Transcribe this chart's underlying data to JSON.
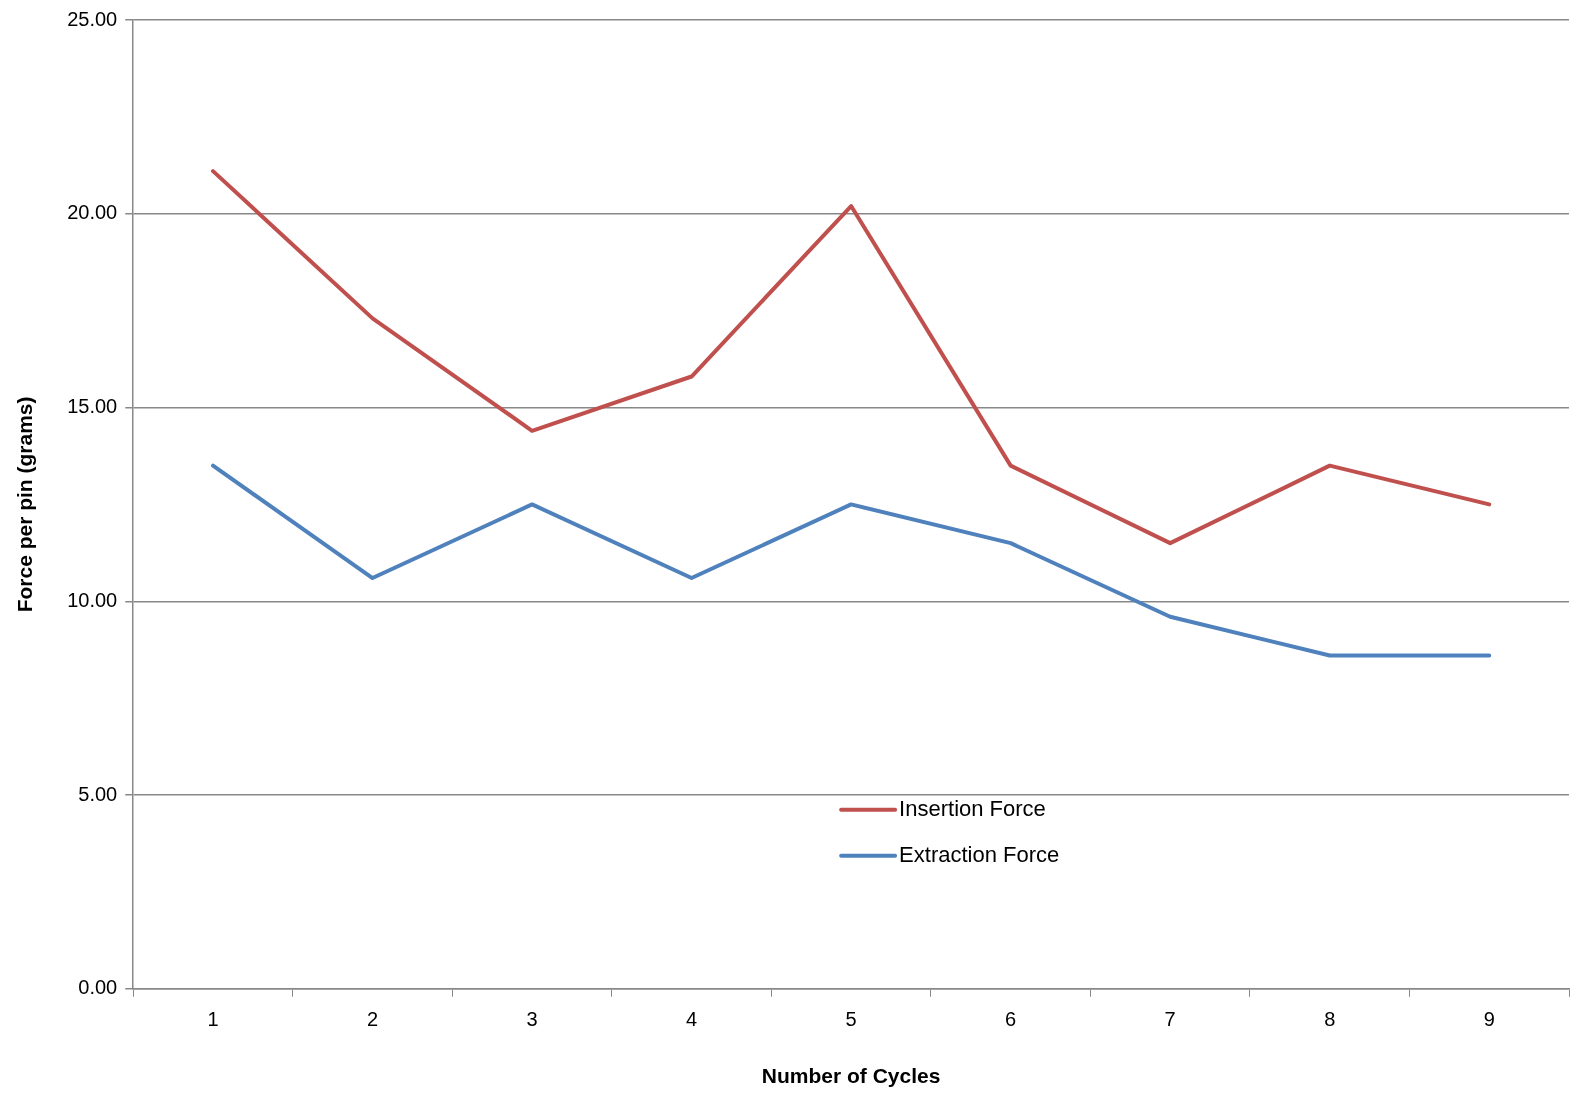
{
  "chart_data": {
    "type": "line",
    "xlabel": "Number of Cycles",
    "ylabel": "Force per pin (grams)",
    "categories": [
      "1",
      "2",
      "3",
      "4",
      "5",
      "6",
      "7",
      "8",
      "9"
    ],
    "series": [
      {
        "name": "Insertion Force",
        "color": "#c0504d",
        "values": [
          21.1,
          17.3,
          14.4,
          15.8,
          20.2,
          13.5,
          11.5,
          13.5,
          12.5
        ]
      },
      {
        "name": "Extraction Force",
        "color": "#4f81bd",
        "values": [
          13.5,
          10.6,
          12.5,
          10.6,
          12.5,
          11.5,
          9.6,
          8.6,
          8.6
        ]
      }
    ],
    "ylim": [
      0,
      25
    ],
    "yticks": [
      {
        "value": 0,
        "label": "0.00"
      },
      {
        "value": 5,
        "label": "5.00"
      },
      {
        "value": 10,
        "label": "10.00"
      },
      {
        "value": 15,
        "label": "15.00"
      },
      {
        "value": 20,
        "label": "20.00"
      },
      {
        "value": 25,
        "label": "25.00"
      }
    ],
    "grid": "y",
    "legend": "bottom",
    "marker": "none",
    "line_style": "solid"
  }
}
